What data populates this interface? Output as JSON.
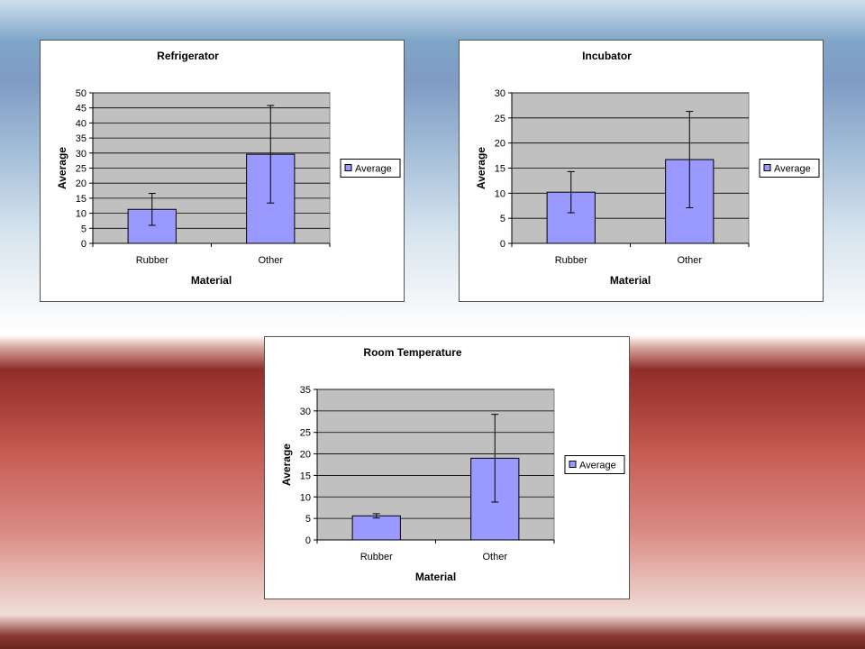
{
  "chart_data": [
    {
      "type": "bar",
      "title": "Refrigerator",
      "xlabel": "Material",
      "ylabel": "Average",
      "categories": [
        "Rubber",
        "Other"
      ],
      "series": [
        {
          "name": "Average",
          "values": [
            11.3,
            29.6
          ],
          "error": [
            5.3,
            16.2
          ]
        }
      ],
      "ylim": [
        0,
        50
      ],
      "yticks": [
        "0",
        "5",
        "10",
        "15",
        "20",
        "25",
        "30",
        "35",
        "40",
        "45",
        "50"
      ],
      "grid": true,
      "legend": "right",
      "bar_color": "#9999ff",
      "plot_bg": "#c0c0c0"
    },
    {
      "type": "bar",
      "title": "Incubator",
      "xlabel": "Material",
      "ylabel": "Average",
      "categories": [
        "Rubber",
        "Other"
      ],
      "series": [
        {
          "name": "Average",
          "values": [
            10.2,
            16.7
          ],
          "error": [
            4.1,
            9.6
          ]
        }
      ],
      "ylim": [
        0,
        30
      ],
      "yticks": [
        "0",
        "5",
        "10",
        "15",
        "20",
        "25",
        "30"
      ],
      "grid": true,
      "legend": "right",
      "bar_color": "#9999ff",
      "plot_bg": "#c0c0c0"
    },
    {
      "type": "bar",
      "title": "Room Temperature",
      "xlabel": "Material",
      "ylabel": "Average",
      "categories": [
        "Rubber",
        "Other"
      ],
      "series": [
        {
          "name": "Average",
          "values": [
            5.6,
            19.0
          ],
          "error": [
            0.5,
            10.2
          ]
        }
      ],
      "ylim": [
        0,
        35
      ],
      "yticks": [
        "0",
        "5",
        "10",
        "15",
        "20",
        "25",
        "30",
        "35"
      ],
      "grid": true,
      "legend": "right",
      "bar_color": "#9999ff",
      "plot_bg": "#c0c0c0"
    }
  ]
}
